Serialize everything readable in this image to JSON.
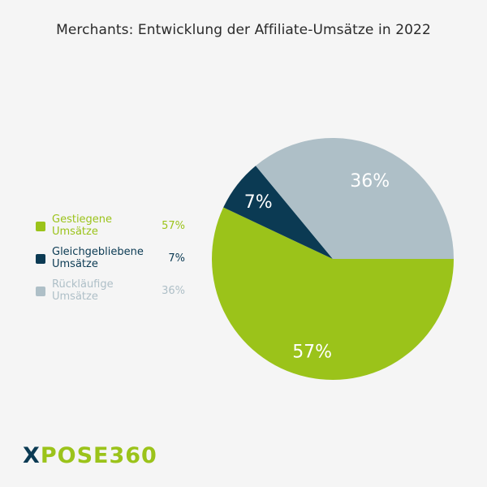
{
  "chart_data": {
    "type": "pie",
    "title": "Merchants: Entwicklung der Affiliate-Umsätze in 2022",
    "slices": [
      {
        "label": "Gestiegene Umsätze",
        "value": 57,
        "display": "57%",
        "color": "#9bc31a"
      },
      {
        "label": "Gleichgebliebene Umsätze",
        "value": 7,
        "display": "7%",
        "color": "#0b3a53"
      },
      {
        "label": "Rückläufige Umsätze",
        "value": 36,
        "display": "36%",
        "color": "#aebfc7"
      }
    ],
    "legend_position": "left"
  },
  "legend": [
    {
      "label_line1": "Gestiegene",
      "label_line2": "Umsätze",
      "pct": "57%"
    },
    {
      "label_line1": "Gleichgebliebene",
      "label_line2": "Umsätze",
      "pct": "7%"
    },
    {
      "label_line1": "Rückläufige",
      "label_line2": "Umsätze",
      "pct": "36%"
    }
  ],
  "logo": {
    "x": "X",
    "rest": "POSE360"
  }
}
